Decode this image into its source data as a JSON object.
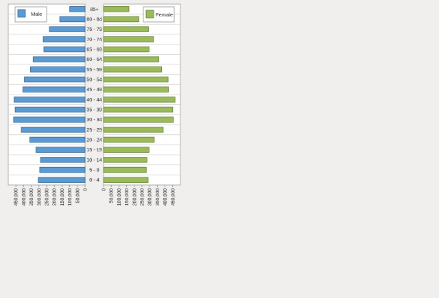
{
  "colors": {
    "male": "#5b9bd5",
    "male_stroke": "#2e5f8a",
    "female": "#9bbb59",
    "female_stroke": "#5f7a2e",
    "plot_bg": "#ffffff",
    "page_bg": "#f0efee"
  },
  "chart_data": {
    "type": "bar",
    "layout": "population-pyramid",
    "categories": [
      "85+",
      "80 - 84",
      "75 - 79",
      "70 - 74",
      "65 - 69",
      "60 - 64",
      "55 - 59",
      "50 - 54",
      "45 - 49",
      "40 - 44",
      "35 - 39",
      "30 - 34",
      "25 - 29",
      "20 - 24",
      "15 - 19",
      "10 - 14",
      "5 -  9",
      "0 -  4"
    ],
    "series": [
      {
        "name": "Male",
        "values": [
          100000,
          165000,
          232000,
          272000,
          268000,
          338000,
          355000,
          395000,
          405000,
          462000,
          455000,
          465000,
          415000,
          360000,
          320000,
          290000,
          295000,
          305000
        ]
      },
      {
        "name": "Female",
        "values": [
          165000,
          230000,
          292000,
          325000,
          296000,
          360000,
          378000,
          420000,
          422000,
          465000,
          450000,
          455000,
          388000,
          330000,
          296000,
          282000,
          278000,
          290000
        ]
      }
    ],
    "xlim": [
      0,
      500000
    ],
    "x_ticks": [
      "0",
      "50,000",
      "100,000",
      "150,000",
      "200,000",
      "250,000",
      "300,000",
      "350,000",
      "400,000",
      "450,000"
    ],
    "legend": {
      "male": "Male",
      "female": "Female"
    },
    "legend_placement": {
      "male": "top-left",
      "female": "top-right"
    },
    "grid": true
  }
}
